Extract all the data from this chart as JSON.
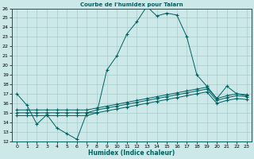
{
  "title": "Courbe de l'humidex pour Talarn",
  "xlabel": "Humidex (Indice chaleur)",
  "bg_color": "#cce8e8",
  "grid_color": "#aacccc",
  "line_color": "#006060",
  "xlim": [
    -0.5,
    23.5
  ],
  "ylim": [
    12,
    26
  ],
  "xticks": [
    0,
    1,
    2,
    3,
    4,
    5,
    6,
    7,
    8,
    9,
    10,
    11,
    12,
    13,
    14,
    15,
    16,
    17,
    18,
    19,
    20,
    21,
    22,
    23
  ],
  "yticks": [
    12,
    13,
    14,
    15,
    16,
    17,
    18,
    19,
    20,
    21,
    22,
    23,
    24,
    25,
    26
  ],
  "line1_x": [
    0,
    1,
    2,
    3,
    4,
    5,
    6,
    7,
    8,
    9,
    10,
    11,
    12,
    13,
    14,
    15,
    16,
    17,
    18,
    19,
    20,
    21,
    22,
    23
  ],
  "line1_y": [
    17.0,
    15.8,
    13.8,
    14.8,
    13.4,
    12.8,
    12.2,
    15.0,
    15.0,
    19.5,
    21.0,
    23.3,
    24.6,
    26.2,
    25.2,
    25.5,
    25.3,
    23.0,
    19.0,
    17.8,
    16.5,
    17.8,
    17.0,
    16.8
  ],
  "line2_x": [
    0,
    1,
    2,
    3,
    4,
    5,
    6,
    7,
    8,
    9,
    10,
    11,
    12,
    13,
    14,
    15,
    16,
    17,
    18,
    19,
    20,
    21,
    22,
    23
  ],
  "line2_y": [
    15.3,
    15.3,
    15.3,
    15.3,
    15.3,
    15.3,
    15.3,
    15.3,
    15.5,
    15.7,
    15.9,
    16.1,
    16.3,
    16.5,
    16.7,
    16.9,
    17.1,
    17.3,
    17.5,
    17.7,
    16.5,
    16.8,
    17.0,
    16.9
  ],
  "line3_x": [
    0,
    1,
    2,
    3,
    4,
    5,
    6,
    7,
    8,
    9,
    10,
    11,
    12,
    13,
    14,
    15,
    16,
    17,
    18,
    19,
    20,
    21,
    22,
    23
  ],
  "line3_y": [
    15.0,
    15.0,
    15.0,
    15.0,
    15.0,
    15.0,
    15.0,
    15.0,
    15.3,
    15.5,
    15.7,
    15.9,
    16.1,
    16.3,
    16.5,
    16.7,
    16.9,
    17.1,
    17.3,
    17.5,
    16.3,
    16.6,
    16.8,
    16.7
  ],
  "line4_x": [
    0,
    1,
    2,
    3,
    4,
    5,
    6,
    7,
    8,
    9,
    10,
    11,
    12,
    13,
    14,
    15,
    16,
    17,
    18,
    19,
    20,
    21,
    22,
    23
  ],
  "line4_y": [
    14.7,
    14.7,
    14.7,
    14.7,
    14.7,
    14.7,
    14.7,
    14.7,
    15.0,
    15.2,
    15.4,
    15.6,
    15.8,
    16.0,
    16.2,
    16.4,
    16.6,
    16.8,
    17.0,
    17.2,
    16.0,
    16.3,
    16.5,
    16.4
  ]
}
